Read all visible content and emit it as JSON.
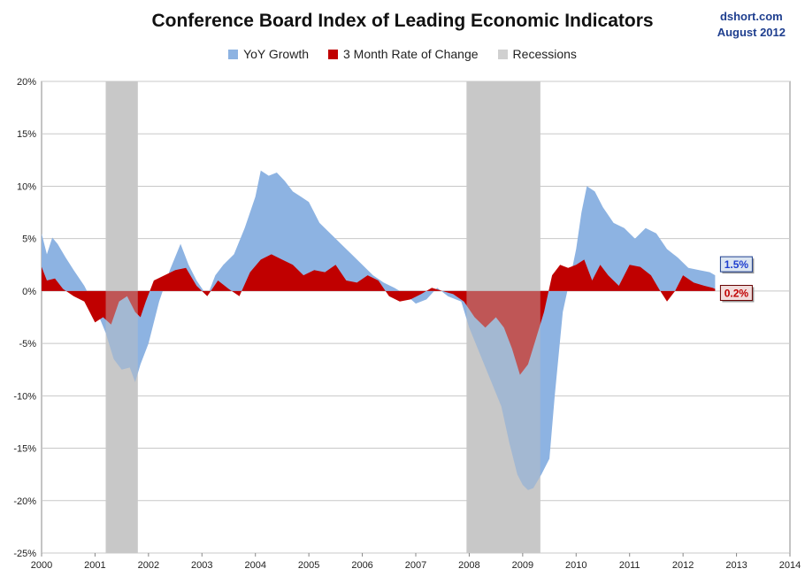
{
  "header": {
    "title": "Conference Board Index of Leading Economic Indicators",
    "source_line1": "dshort.com",
    "source_line2": "August 2012"
  },
  "chart_data": {
    "type": "area",
    "title": "Conference Board Index of Leading Economic Indicators",
    "xlabel": "",
    "ylabel": "",
    "xlim": [
      2000,
      2014
    ],
    "ylim": [
      -25,
      20
    ],
    "x_ticks": [
      "2000",
      "2001",
      "2002",
      "2003",
      "2004",
      "2005",
      "2006",
      "2007",
      "2008",
      "2009",
      "2010",
      "2011",
      "2012",
      "2013",
      "2014"
    ],
    "y_ticks": [
      "20%",
      "15%",
      "10%",
      "5%",
      "0%",
      "-5%",
      "-10%",
      "-15%",
      "-20%",
      "-25%"
    ],
    "grid": "horizontal",
    "legend_position": "top",
    "series": [
      {
        "name": "YoY Growth",
        "color": "#8db3e2",
        "x": [
          2000.0,
          2000.1,
          2000.2,
          2000.3,
          2000.45,
          2000.6,
          2000.8,
          2001.0,
          2001.2,
          2001.35,
          2001.5,
          2001.65,
          2001.75,
          2001.85,
          2002.0,
          2002.2,
          2002.4,
          2002.6,
          2002.75,
          2002.9,
          2003.1,
          2003.25,
          2003.4,
          2003.6,
          2003.8,
          2004.0,
          2004.1,
          2004.25,
          2004.4,
          2004.55,
          2004.7,
          2004.85,
          2005.0,
          2005.2,
          2005.4,
          2005.6,
          2005.8,
          2006.0,
          2006.2,
          2006.4,
          2006.6,
          2006.8,
          2007.0,
          2007.2,
          2007.4,
          2007.6,
          2007.85,
          2008.0,
          2008.2,
          2008.4,
          2008.6,
          2008.75,
          2008.9,
          2009.0,
          2009.1,
          2009.2,
          2009.35,
          2009.5,
          2009.6,
          2009.75,
          2009.9,
          2010.0,
          2010.1,
          2010.2,
          2010.35,
          2010.5,
          2010.7,
          2010.9,
          2011.1,
          2011.3,
          2011.5,
          2011.7,
          2011.9,
          2012.1,
          2012.3,
          2012.5,
          2012.6
        ],
        "values": [
          5.5,
          3.5,
          5.1,
          4.5,
          3.2,
          2.0,
          0.5,
          -1.5,
          -4.0,
          -6.5,
          -7.5,
          -7.3,
          -8.7,
          -7.0,
          -5.0,
          -1.0,
          2.0,
          4.5,
          2.5,
          1.0,
          -0.5,
          1.5,
          2.5,
          3.5,
          6.0,
          9.0,
          11.5,
          11.0,
          11.3,
          10.5,
          9.5,
          9.0,
          8.5,
          6.5,
          5.5,
          4.5,
          3.5,
          2.5,
          1.5,
          0.8,
          0.3,
          -0.3,
          -1.2,
          -0.8,
          0.3,
          -0.5,
          -1.0,
          -3.5,
          -6.0,
          -8.5,
          -11.0,
          -14.5,
          -17.5,
          -18.5,
          -19.0,
          -18.8,
          -17.5,
          -16.0,
          -10.0,
          -2.0,
          1.5,
          4.0,
          7.5,
          10.0,
          9.5,
          8.0,
          6.5,
          6.0,
          5.0,
          6.0,
          5.5,
          4.0,
          3.2,
          2.2,
          2.0,
          1.8,
          1.5
        ]
      },
      {
        "name": "3 Month Rate of Change",
        "color": "#c00000",
        "x": [
          2000.0,
          2000.1,
          2000.25,
          2000.4,
          2000.6,
          2000.8,
          2001.0,
          2001.15,
          2001.3,
          2001.45,
          2001.6,
          2001.75,
          2001.85,
          2001.95,
          2002.1,
          2002.3,
          2002.5,
          2002.7,
          2002.9,
          2003.1,
          2003.3,
          2003.5,
          2003.7,
          2003.9,
          2004.1,
          2004.3,
          2004.5,
          2004.7,
          2004.9,
          2005.1,
          2005.3,
          2005.5,
          2005.7,
          2005.9,
          2006.1,
          2006.3,
          2006.5,
          2006.7,
          2006.9,
          2007.1,
          2007.3,
          2007.5,
          2007.7,
          2007.9,
          2008.1,
          2008.3,
          2008.5,
          2008.65,
          2008.8,
          2008.95,
          2009.1,
          2009.25,
          2009.4,
          2009.55,
          2009.7,
          2009.85,
          2010.0,
          2010.15,
          2010.3,
          2010.45,
          2010.6,
          2010.8,
          2011.0,
          2011.2,
          2011.4,
          2011.55,
          2011.7,
          2011.85,
          2012.0,
          2012.2,
          2012.4,
          2012.55,
          2012.6
        ],
        "values": [
          2.3,
          1.0,
          1.2,
          0.2,
          -0.5,
          -1.0,
          -3.0,
          -2.5,
          -3.2,
          -1.0,
          -0.5,
          -2.0,
          -2.5,
          -1.0,
          1.0,
          1.5,
          2.0,
          2.2,
          0.5,
          -0.5,
          1.0,
          0.2,
          -0.5,
          1.8,
          3.0,
          3.5,
          3.0,
          2.5,
          1.5,
          2.0,
          1.8,
          2.5,
          1.0,
          0.8,
          1.5,
          1.0,
          -0.5,
          -1.0,
          -0.8,
          -0.3,
          0.3,
          0.0,
          -0.3,
          -1.0,
          -2.5,
          -3.5,
          -2.5,
          -3.5,
          -5.5,
          -8.0,
          -7.0,
          -4.5,
          -2.0,
          1.5,
          2.5,
          2.2,
          2.5,
          3.0,
          1.0,
          2.5,
          1.5,
          0.5,
          2.5,
          2.3,
          1.5,
          0.2,
          -1.0,
          0.0,
          1.5,
          0.8,
          0.5,
          0.3,
          0.2
        ]
      },
      {
        "name": "Recessions",
        "color": "#d0d0d0",
        "ranges": [
          [
            2001.2,
            2001.8
          ],
          [
            2007.95,
            2009.33
          ]
        ]
      }
    ],
    "annotations": [
      {
        "series": "YoY Growth",
        "label": "1.5%",
        "value": 1.5
      },
      {
        "series": "3 Month Rate of Change",
        "label": "0.2%",
        "value": 0.2
      }
    ]
  }
}
